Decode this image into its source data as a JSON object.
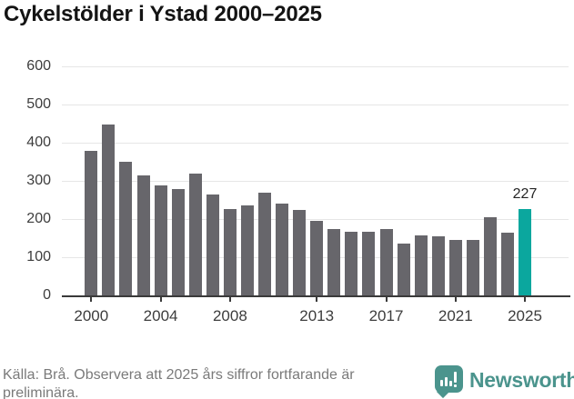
{
  "header": {
    "title": "Cykelstölder i Ystad 2000–2025"
  },
  "chart_data": {
    "type": "bar",
    "title": "Cykelstölder i Ystad 2000–2025",
    "categories": [
      2000,
      2001,
      2002,
      2003,
      2004,
      2005,
      2006,
      2007,
      2008,
      2009,
      2010,
      2011,
      2012,
      2013,
      2014,
      2015,
      2016,
      2017,
      2018,
      2019,
      2020,
      2021,
      2022,
      2023,
      2024,
      2025
    ],
    "values": [
      378,
      446,
      350,
      313,
      287,
      278,
      318,
      265,
      226,
      235,
      269,
      240,
      224,
      194,
      174,
      167,
      167,
      173,
      136,
      156,
      154,
      144,
      146,
      205,
      165,
      227
    ],
    "highlight_year": 2025,
    "highlight_label": "227",
    "xlabel": "",
    "ylabel": "",
    "ylim": [
      0,
      600
    ],
    "yticks": [
      0,
      100,
      200,
      300,
      400,
      500,
      600
    ],
    "xticks": [
      2000,
      2004,
      2008,
      2013,
      2017,
      2021,
      2025
    ],
    "grid": true,
    "legend_position": "none",
    "bar_color": "#67666b",
    "highlight_color": "#0ba79e"
  },
  "footer": {
    "source_text": "Källa: Brå. Observera att 2025 års siffror fortfarande är preliminära.",
    "brand_name": "Newsworthy",
    "brand_color": "#4b948d",
    "brand_icon": "bar-chart-bubble-icon"
  }
}
